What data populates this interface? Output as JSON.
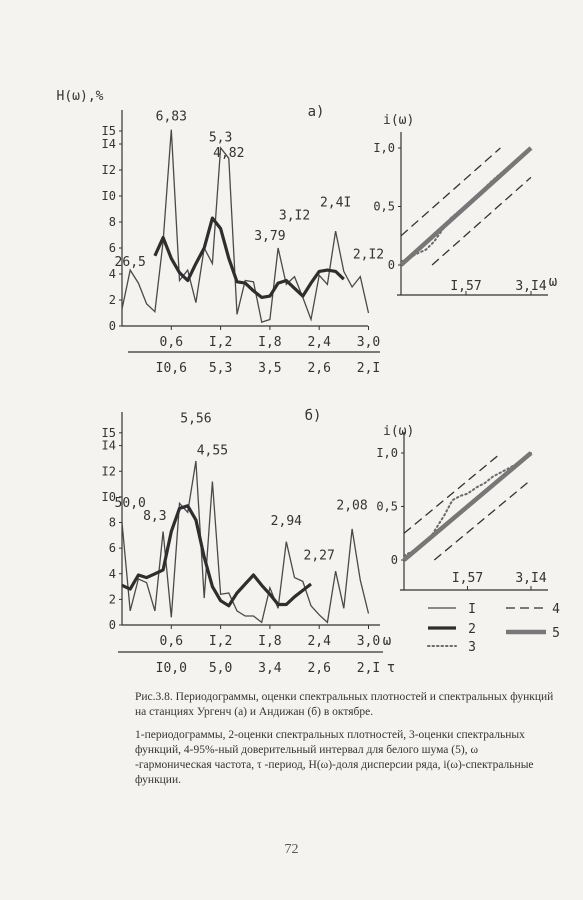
{
  "chart_data": [
    {
      "id": "a-periodogram",
      "type": "line",
      "panel_label": "а)",
      "ylabel": "H(ω),%",
      "ylim": [
        0,
        16
      ],
      "xlim": [
        0,
        3.14
      ],
      "y_tick_labels": [
        {
          "v": 0,
          "t": "0"
        },
        {
          "v": 2,
          "t": "2"
        },
        {
          "v": 4,
          "t": "4"
        },
        {
          "v": 6,
          "t": "6"
        },
        {
          "v": 8,
          "t": "8"
        },
        {
          "v": 10,
          "t": "I0"
        },
        {
          "v": 12,
          "t": "I2"
        },
        {
          "v": 14,
          "t": "I4"
        },
        {
          "v": 15,
          "t": "I5"
        }
      ],
      "x_axis_omega": [
        {
          "v": 0.6,
          "t": "0,6"
        },
        {
          "v": 1.2,
          "t": "I,2"
        },
        {
          "v": 1.8,
          "t": "I,8"
        },
        {
          "v": 2.4,
          "t": "2,4"
        },
        {
          "v": 3.0,
          "t": "3,0"
        }
      ],
      "x_axis_period": [
        {
          "v": 0.6,
          "t": "I0,6"
        },
        {
          "v": 1.2,
          "t": "5,3"
        },
        {
          "v": 1.8,
          "t": "3,5"
        },
        {
          "v": 2.4,
          "t": "2,6"
        },
        {
          "v": 3.0,
          "t": "2,I"
        }
      ],
      "series": [
        {
          "style": "periodogram",
          "x": [
            0.0,
            0.1,
            0.2,
            0.3,
            0.4,
            0.5,
            0.6,
            0.7,
            0.8,
            0.9,
            1.0,
            1.1,
            1.2,
            1.3,
            1.4,
            1.5,
            1.6,
            1.7,
            1.8,
            1.9,
            2.0,
            2.1,
            2.2,
            2.3,
            2.4,
            2.5,
            2.6,
            2.7,
            2.8,
            2.9,
            3.0
          ],
          "y": [
            1.3,
            4.3,
            3.3,
            1.7,
            1.1,
            6.5,
            15.1,
            3.5,
            4.3,
            1.8,
            6.0,
            4.8,
            13.7,
            12.9,
            0.9,
            3.5,
            3.4,
            0.3,
            0.5,
            6.0,
            3.2,
            3.8,
            2.2,
            0.5,
            3.9,
            3.2,
            7.3,
            4.2,
            3.0,
            3.8,
            1.0
          ]
        },
        {
          "style": "spectral-density",
          "x": [
            0.4,
            0.5,
            0.6,
            0.7,
            0.8,
            0.9,
            1.0,
            1.1,
            1.2,
            1.3,
            1.4,
            1.5,
            1.6,
            1.7,
            1.8,
            1.9,
            2.0,
            2.1,
            2.2,
            2.3,
            2.4,
            2.5,
            2.6,
            2.7
          ],
          "y": [
            5.4,
            6.8,
            5.2,
            4.1,
            3.5,
            4.8,
            6.0,
            8.3,
            7.5,
            5.2,
            3.4,
            3.3,
            2.7,
            2.2,
            2.3,
            3.3,
            3.5,
            2.9,
            2.3,
            3.3,
            4.2,
            4.3,
            4.2,
            3.6
          ]
        }
      ],
      "annotations": [
        {
          "x": 0.1,
          "y": 4.6,
          "text": "26,5"
        },
        {
          "x": 0.6,
          "y": 15.8,
          "text": "6,83"
        },
        {
          "x": 1.2,
          "y": 14.2,
          "text": "5,3"
        },
        {
          "x": 1.3,
          "y": 13.0,
          "text": "4,82"
        },
        {
          "x": 1.8,
          "y": 6.6,
          "text": "3,79"
        },
        {
          "x": 2.1,
          "y": 8.2,
          "text": "3,I2"
        },
        {
          "x": 2.6,
          "y": 9.2,
          "text": "2,4I"
        },
        {
          "x": 3.0,
          "y": 5.2,
          "text": "2,I2"
        }
      ]
    },
    {
      "id": "a-spectral-function",
      "type": "line",
      "ylabel": "i(ω)",
      "ylim": [
        0,
        1.0
      ],
      "xlim": [
        0,
        3.14
      ],
      "y_tick_labels": [
        {
          "v": 0,
          "t": "0"
        },
        {
          "v": 0.5,
          "t": "0,5"
        },
        {
          "v": 1.0,
          "t": "I,0"
        }
      ],
      "x_tick_labels": [
        {
          "v": 1.57,
          "t": "I,57"
        },
        {
          "v": 3.14,
          "t": "3,I4"
        }
      ],
      "x_axis_symbol": "ω",
      "series": [
        {
          "style": "spectral-function",
          "x": [
            0.0,
            0.2,
            0.4,
            0.6,
            0.8,
            1.0,
            1.2,
            1.4,
            1.57,
            1.8,
            2.0,
            2.2,
            2.4,
            2.6,
            2.8,
            3.0,
            3.14
          ],
          "y": [
            0.03,
            0.06,
            0.1,
            0.13,
            0.2,
            0.3,
            0.4,
            0.46,
            0.5,
            0.58,
            0.65,
            0.72,
            0.78,
            0.84,
            0.9,
            0.96,
            1.0
          ]
        },
        {
          "style": "white-noise",
          "x": [
            0.0,
            3.14
          ],
          "y": [
            0.0,
            1.0
          ]
        },
        {
          "style": "confidence-upper",
          "x": [
            0.0,
            2.4
          ],
          "y": [
            0.25,
            1.0
          ]
        },
        {
          "style": "confidence-lower",
          "x": [
            0.75,
            3.14
          ],
          "y": [
            0.0,
            0.75
          ]
        }
      ]
    },
    {
      "id": "b-periodogram",
      "type": "line",
      "panel_label": "б)",
      "ylim": [
        0,
        16
      ],
      "xlim": [
        0,
        3.14
      ],
      "y_tick_labels": [
        {
          "v": 0,
          "t": "0"
        },
        {
          "v": 2,
          "t": "2"
        },
        {
          "v": 4,
          "t": "4"
        },
        {
          "v": 6,
          "t": "6"
        },
        {
          "v": 8,
          "t": "8"
        },
        {
          "v": 10,
          "t": "I0"
        },
        {
          "v": 12,
          "t": "I2"
        },
        {
          "v": 14,
          "t": "I4"
        },
        {
          "v": 15,
          "t": "I5"
        }
      ],
      "x_axis_omega": [
        {
          "v": 0.6,
          "t": "0,6"
        },
        {
          "v": 1.2,
          "t": "I,2"
        },
        {
          "v": 1.8,
          "t": "I,8"
        },
        {
          "v": 2.4,
          "t": "2,4"
        },
        {
          "v": 3.0,
          "t": "3,0"
        }
      ],
      "x_axis_period": [
        {
          "v": 0.6,
          "t": "I0,0"
        },
        {
          "v": 1.2,
          "t": "5,0"
        },
        {
          "v": 1.8,
          "t": "3,4"
        },
        {
          "v": 2.4,
          "t": "2,6"
        },
        {
          "v": 3.0,
          "t": "2,I"
        }
      ],
      "x_axis_symbols": {
        "omega": "ω",
        "period": "τ"
      },
      "series": [
        {
          "style": "periodogram",
          "x": [
            0.0,
            0.1,
            0.2,
            0.3,
            0.4,
            0.5,
            0.6,
            0.7,
            0.8,
            0.9,
            1.0,
            1.1,
            1.2,
            1.3,
            1.4,
            1.5,
            1.6,
            1.7,
            1.8,
            1.9,
            2.0,
            2.1,
            2.2,
            2.3,
            2.4,
            2.5,
            2.6,
            2.7,
            2.8,
            2.9,
            3.0
          ],
          "y": [
            8.0,
            1.1,
            3.6,
            3.3,
            1.1,
            7.3,
            0.6,
            9.5,
            8.8,
            12.8,
            2.1,
            11.2,
            2.4,
            2.5,
            1.1,
            0.7,
            0.7,
            0.2,
            2.9,
            1.3,
            6.5,
            3.7,
            3.4,
            1.5,
            0.8,
            0.2,
            4.2,
            1.3,
            7.5,
            3.5,
            0.9
          ]
        },
        {
          "style": "spectral-density",
          "x": [
            0.0,
            0.1,
            0.2,
            0.3,
            0.4,
            0.5,
            0.6,
            0.7,
            0.8,
            0.9,
            1.0,
            1.1,
            1.2,
            1.3,
            1.4,
            1.5,
            1.6,
            1.7,
            1.8,
            1.9,
            2.0,
            2.1,
            2.2,
            2.3
          ],
          "y": [
            3.1,
            2.8,
            3.9,
            3.7,
            4.0,
            4.3,
            7.3,
            9.1,
            9.3,
            8.2,
            5.3,
            3.0,
            1.9,
            1.5,
            2.5,
            3.2,
            3.9,
            3.1,
            2.4,
            1.6,
            1.6,
            2.2,
            2.7,
            3.2
          ]
        }
      ],
      "annotations": [
        {
          "x": 0.1,
          "y": 9.2,
          "text": "50,0"
        },
        {
          "x": 0.4,
          "y": 8.2,
          "text": "8,3"
        },
        {
          "x": 0.9,
          "y": 15.8,
          "text": "5,56"
        },
        {
          "x": 1.1,
          "y": 13.3,
          "text": "4,55"
        },
        {
          "x": 2.0,
          "y": 7.8,
          "text": "2,94"
        },
        {
          "x": 2.4,
          "y": 5.1,
          "text": "2,27"
        },
        {
          "x": 2.8,
          "y": 9.0,
          "text": "2,08"
        }
      ]
    },
    {
      "id": "b-spectral-function",
      "type": "line",
      "ylabel": "i(ω)",
      "ylim": [
        0,
        1.0
      ],
      "xlim": [
        0,
        3.14
      ],
      "y_tick_labels": [
        {
          "v": 0,
          "t": "0"
        },
        {
          "v": 0.5,
          "t": "0,5"
        },
        {
          "v": 1.0,
          "t": "I,0"
        }
      ],
      "x_tick_labels": [
        {
          "v": 1.57,
          "t": "I,57"
        },
        {
          "v": 3.14,
          "t": "3,I4"
        }
      ],
      "series": [
        {
          "style": "spectral-function",
          "x": [
            0.0,
            0.2,
            0.4,
            0.6,
            0.8,
            1.0,
            1.2,
            1.4,
            1.57,
            1.8,
            2.0,
            2.2,
            2.4,
            2.6,
            2.8,
            3.0,
            3.14
          ],
          "y": [
            0.04,
            0.08,
            0.12,
            0.18,
            0.3,
            0.42,
            0.56,
            0.6,
            0.62,
            0.68,
            0.72,
            0.78,
            0.82,
            0.86,
            0.9,
            0.96,
            1.0
          ]
        },
        {
          "style": "white-noise",
          "x": [
            0.0,
            3.14
          ],
          "y": [
            0.0,
            1.0
          ]
        },
        {
          "style": "confidence-upper",
          "x": [
            0.0,
            2.4
          ],
          "y": [
            0.25,
            1.0
          ]
        },
        {
          "style": "confidence-lower",
          "x": [
            0.75,
            3.14
          ],
          "y": [
            0.0,
            0.75
          ]
        }
      ]
    }
  ],
  "legend": [
    {
      "num": "I",
      "style": "periodogram"
    },
    {
      "num": "2",
      "style": "spectral-density"
    },
    {
      "num": "3",
      "style": "spectral-function"
    },
    {
      "num": "4",
      "style": "confidence"
    },
    {
      "num": "5",
      "style": "white-noise"
    }
  ],
  "caption": {
    "title_prefix": "Рис.3.8.",
    "title": "Периодограммы, оценки спектральных плотностей и спектральных функций на станциях Ургенч (а) и Андижан (б) в октябре.",
    "legend_text": "1-периодограммы, 2-оценки спектральных плотностей, 3-оценки спектральных функций, 4-95%-ный доверительный интервал для белого шума (5), ω -гармоническая частота, τ -период, H(ω)-доля дисперсии ряда, i(ω)-спектральные функции."
  },
  "page_number": "72"
}
